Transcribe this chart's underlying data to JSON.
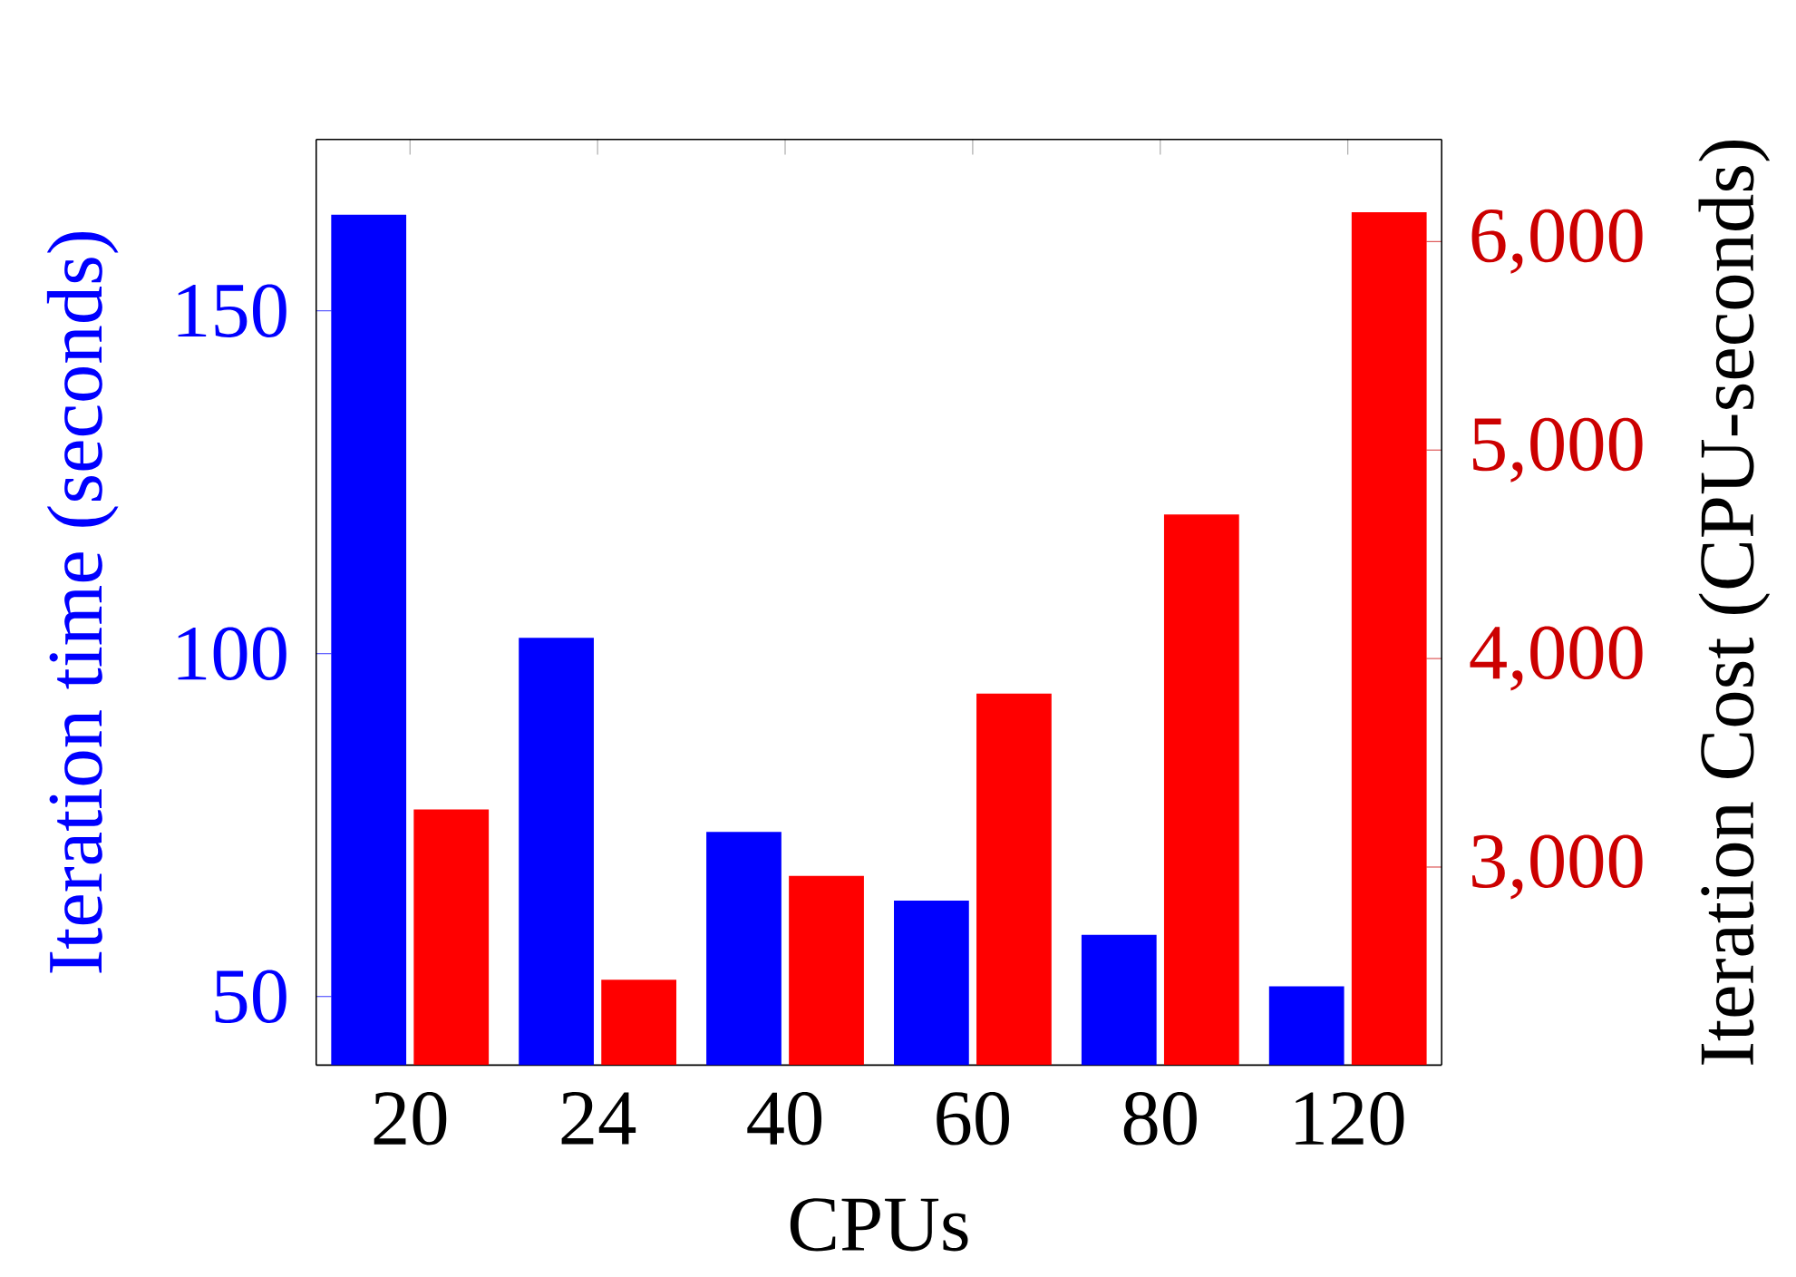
{
  "chart_data": {
    "type": "bar",
    "categories": [
      "20",
      "24",
      "40",
      "60",
      "80",
      "120"
    ],
    "xlabel": "CPUs",
    "ylabel": "Iteration time (seconds)",
    "y2label": "Iteration Cost (CPU-seconds)",
    "ylim": [
      40,
      175
    ],
    "yticks": [
      50,
      100,
      150
    ],
    "y2lim": [
      2050,
      6490
    ],
    "y2ticks": [
      {
        "value": 3000,
        "label": "3,000"
      },
      {
        "value": 4000,
        "label": "4,000"
      },
      {
        "value": 5000,
        "label": "5,000"
      },
      {
        "value": 6000,
        "label": "6,000"
      }
    ],
    "series": [
      {
        "color": "#0000ff",
        "values": [
          164,
          102.3,
          74,
          64,
          59,
          51.5
        ]
      },
      {
        "color": "#ff0000",
        "axis": "y2",
        "values": [
          3276,
          2459,
          2957,
          3832,
          4691,
          6141
        ]
      }
    ]
  }
}
